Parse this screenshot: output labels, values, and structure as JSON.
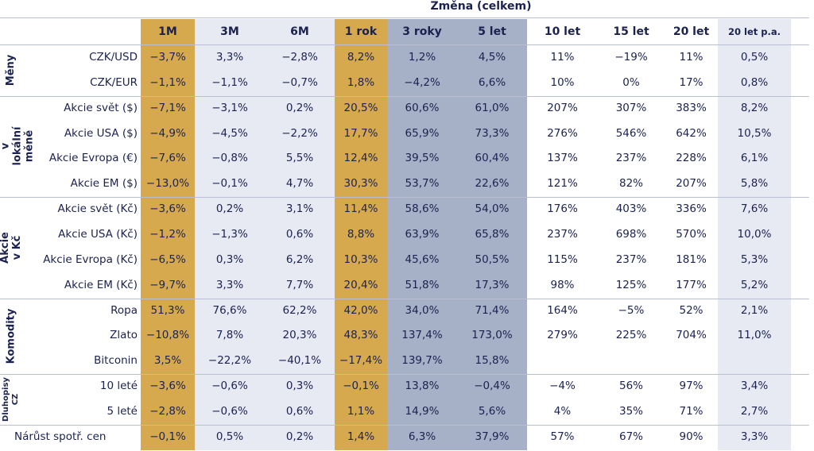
{
  "title": "Změna (celkem)",
  "colors": {
    "gold": "#d6a94f",
    "light": "#e7eaf3",
    "slate": "#a6b0c6",
    "text": "#1b2250"
  },
  "columns": [
    "1M",
    "3M",
    "6M",
    "1 rok",
    "3 roky",
    "5 let",
    "10 let",
    "15 let",
    "20 let",
    "20 let p.a."
  ],
  "groups": [
    {
      "label": "Měny",
      "rows": [
        {
          "label": "CZK/USD",
          "values": [
            "−3,7%",
            "3,3%",
            "−2,8%",
            "8,2%",
            "1,2%",
            "4,5%",
            "11%",
            "−19%",
            "11%",
            "0,5%"
          ]
        },
        {
          "label": "CZK/EUR",
          "values": [
            "−1,1%",
            "−1,1%",
            "−0,7%",
            "1,8%",
            "−4,2%",
            "6,6%",
            "10%",
            "0%",
            "17%",
            "0,8%"
          ]
        }
      ]
    },
    {
      "label": "Akcie v lokální měně",
      "rows": [
        {
          "label": "Akcie svět ($)",
          "values": [
            "−7,1%",
            "−3,1%",
            "0,2%",
            "20,5%",
            "60,6%",
            "61,0%",
            "207%",
            "307%",
            "383%",
            "8,2%"
          ]
        },
        {
          "label": "Akcie USA ($)",
          "values": [
            "−4,9%",
            "−4,5%",
            "−2,2%",
            "17,7%",
            "65,9%",
            "73,3%",
            "276%",
            "546%",
            "642%",
            "10,5%"
          ]
        },
        {
          "label": "Akcie Evropa (€)",
          "values": [
            "−7,6%",
            "−0,8%",
            "5,5%",
            "12,4%",
            "39,5%",
            "60,4%",
            "137%",
            "237%",
            "228%",
            "6,1%"
          ]
        },
        {
          "label": "Akcie EM ($)",
          "values": [
            "−13,0%",
            "−0,1%",
            "4,7%",
            "30,3%",
            "53,7%",
            "22,6%",
            "121%",
            "82%",
            "207%",
            "5,8%"
          ]
        }
      ]
    },
    {
      "label": "Akcie v Kč",
      "rows": [
        {
          "label": "Akcie svět (Kč)",
          "values": [
            "−3,6%",
            "0,2%",
            "3,1%",
            "11,4%",
            "58,6%",
            "54,0%",
            "176%",
            "403%",
            "336%",
            "7,6%"
          ]
        },
        {
          "label": "Akcie USA (Kč)",
          "values": [
            "−1,2%",
            "−1,3%",
            "0,6%",
            "8,8%",
            "63,9%",
            "65,8%",
            "237%",
            "698%",
            "570%",
            "10,0%"
          ]
        },
        {
          "label": "Akcie Evropa (Kč)",
          "values": [
            "−6,5%",
            "0,3%",
            "6,2%",
            "10,3%",
            "45,6%",
            "50,5%",
            "115%",
            "237%",
            "181%",
            "5,3%"
          ]
        },
        {
          "label": "Akcie EM (Kč)",
          "values": [
            "−9,7%",
            "3,3%",
            "7,7%",
            "20,4%",
            "51,8%",
            "17,3%",
            "98%",
            "125%",
            "177%",
            "5,2%"
          ]
        }
      ]
    },
    {
      "label": "Komodity",
      "rows": [
        {
          "label": "Ropa",
          "values": [
            "51,3%",
            "76,6%",
            "62,2%",
            "42,0%",
            "34,0%",
            "71,4%",
            "164%",
            "−5%",
            "52%",
            "2,1%"
          ]
        },
        {
          "label": "Zlato",
          "values": [
            "−10,8%",
            "7,8%",
            "20,3%",
            "48,3%",
            "137,4%",
            "173,0%",
            "279%",
            "225%",
            "704%",
            "11,0%"
          ]
        },
        {
          "label": "Bitconin",
          "values": [
            "3,5%",
            "−22,2%",
            "−40,1%",
            "−17,4%",
            "139,7%",
            "15,8%",
            "",
            "",
            "",
            ""
          ]
        }
      ]
    },
    {
      "label": "Dluhopisy CZ",
      "rows": [
        {
          "label": "10 leté",
          "values": [
            "−3,6%",
            "−0,6%",
            "0,3%",
            "−0,1%",
            "13,8%",
            "−0,4%",
            "−4%",
            "56%",
            "97%",
            "3,4%"
          ]
        },
        {
          "label": "5 leté",
          "values": [
            "−2,8%",
            "−0,6%",
            "0,6%",
            "1,1%",
            "14,9%",
            "5,6%",
            "4%",
            "35%",
            "71%",
            "2,7%"
          ]
        }
      ]
    },
    {
      "label": "",
      "rows": [
        {
          "label": "Nárůst spotř. cen",
          "values": [
            "−0,1%",
            "0,5%",
            "0,2%",
            "1,4%",
            "6,3%",
            "37,9%",
            "57%",
            "67%",
            "90%",
            "3,3%"
          ]
        }
      ]
    }
  ]
}
